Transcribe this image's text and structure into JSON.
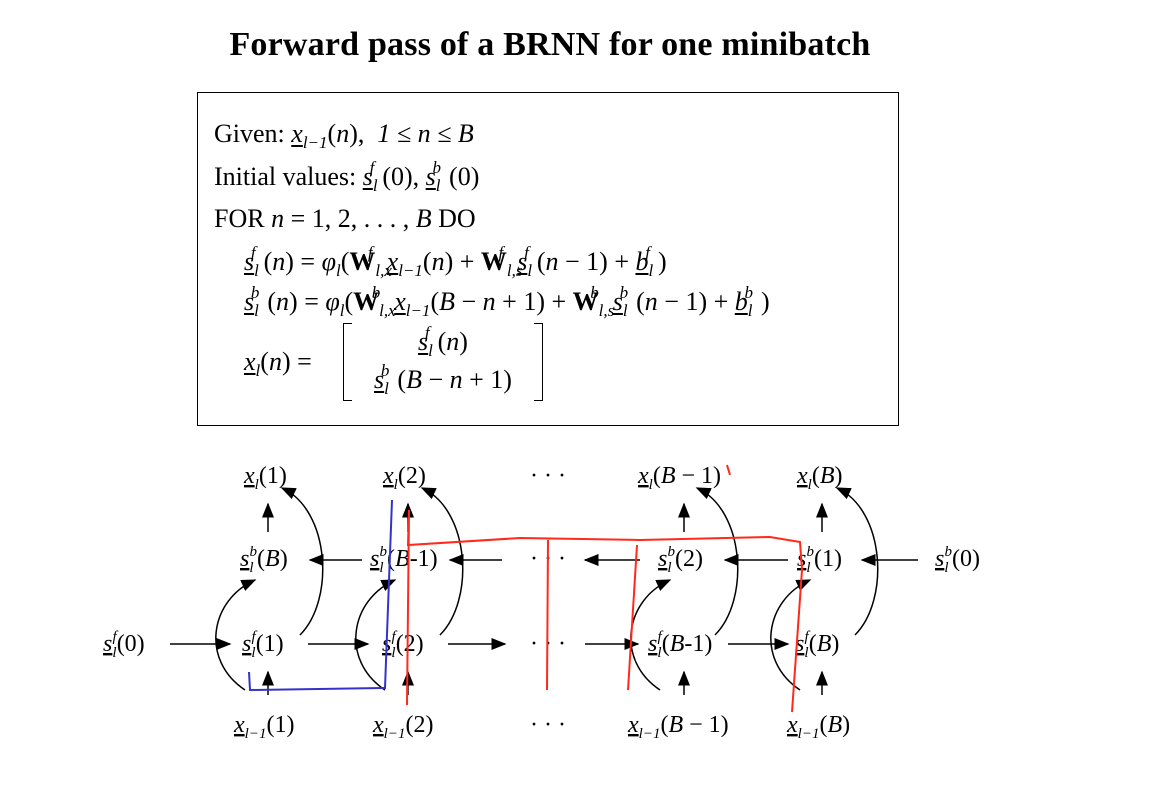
{
  "title": "Forward pass of a BRNN for one minibatch",
  "algorithm": {
    "given_label": "Given:",
    "given_range": "1 ≤ n ≤ B",
    "initial_label": "Initial values:",
    "for_label": "FOR n = 1, 2, . . . , B DO",
    "forward_eq": "s_l^f(n) = φ_l(W^f_{l,x} x_{l−1}(n) + W^f_{l,s} s_l^f(n − 1) + b_l^f)",
    "backward_eq": "s_l^b(n) = φ_l(W^b_{l,x} x_{l−1}(B − n + 1) + W^b_{l,s} s_l^b(n − 1) + b_l^b)",
    "output_eq": "x_l(n) = [ s_l^f(n) ; s_l^b(B − n + 1) ]"
  },
  "diagram": {
    "outputs": [
      "x_l(1)",
      "x_l(2)",
      "· · ·",
      "x_l(B − 1)",
      "x_l(B)"
    ],
    "backward_states": [
      "s_l^b(B)",
      "s_l^b(B-1)",
      "· · ·",
      "s_l^b(2)",
      "s_l^b(1)",
      "s_l^b(0)"
    ],
    "forward_states": [
      "s_l^f(0)",
      "s_l^f(1)",
      "s_l^f(2)",
      "· · ·",
      "s_l^f(B-1)",
      "s_l^f(B)"
    ],
    "inputs": [
      "x_{l−1}(1)",
      "x_{l−1}(2)",
      "· · ·",
      "x_{l−1}(B − 1)",
      "x_{l−1}(B)"
    ],
    "annotation_colors": {
      "red": "#ff2a1a",
      "blue": "#3333cc"
    }
  }
}
